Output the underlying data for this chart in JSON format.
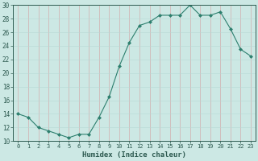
{
  "x": [
    0,
    1,
    2,
    3,
    4,
    5,
    6,
    7,
    8,
    9,
    10,
    11,
    12,
    13,
    14,
    15,
    16,
    17,
    18,
    19,
    20,
    21,
    22,
    23
  ],
  "y": [
    14.0,
    13.5,
    12.0,
    11.5,
    11.0,
    10.5,
    11.0,
    11.0,
    13.5,
    16.5,
    21.0,
    24.5,
    27.0,
    27.5,
    28.5,
    28.5,
    28.5,
    30.0,
    28.5,
    28.5,
    29.0,
    26.5,
    23.5,
    22.5
  ],
  "line_color": "#2d7f6e",
  "marker": "D",
  "marker_size": 2.0,
  "bg_color": "#cce8e4",
  "grid_color": "#b8d8d4",
  "tick_color": "#2d5a50",
  "xlabel": "Humidex (Indice chaleur)",
  "xlim": [
    -0.5,
    23.5
  ],
  "ylim": [
    10,
    30
  ],
  "yticks": [
    10,
    12,
    14,
    16,
    18,
    20,
    22,
    24,
    26,
    28,
    30
  ],
  "xticks": [
    0,
    1,
    2,
    3,
    4,
    5,
    6,
    7,
    8,
    9,
    10,
    11,
    12,
    13,
    14,
    15,
    16,
    17,
    18,
    19,
    20,
    21,
    22,
    23
  ]
}
